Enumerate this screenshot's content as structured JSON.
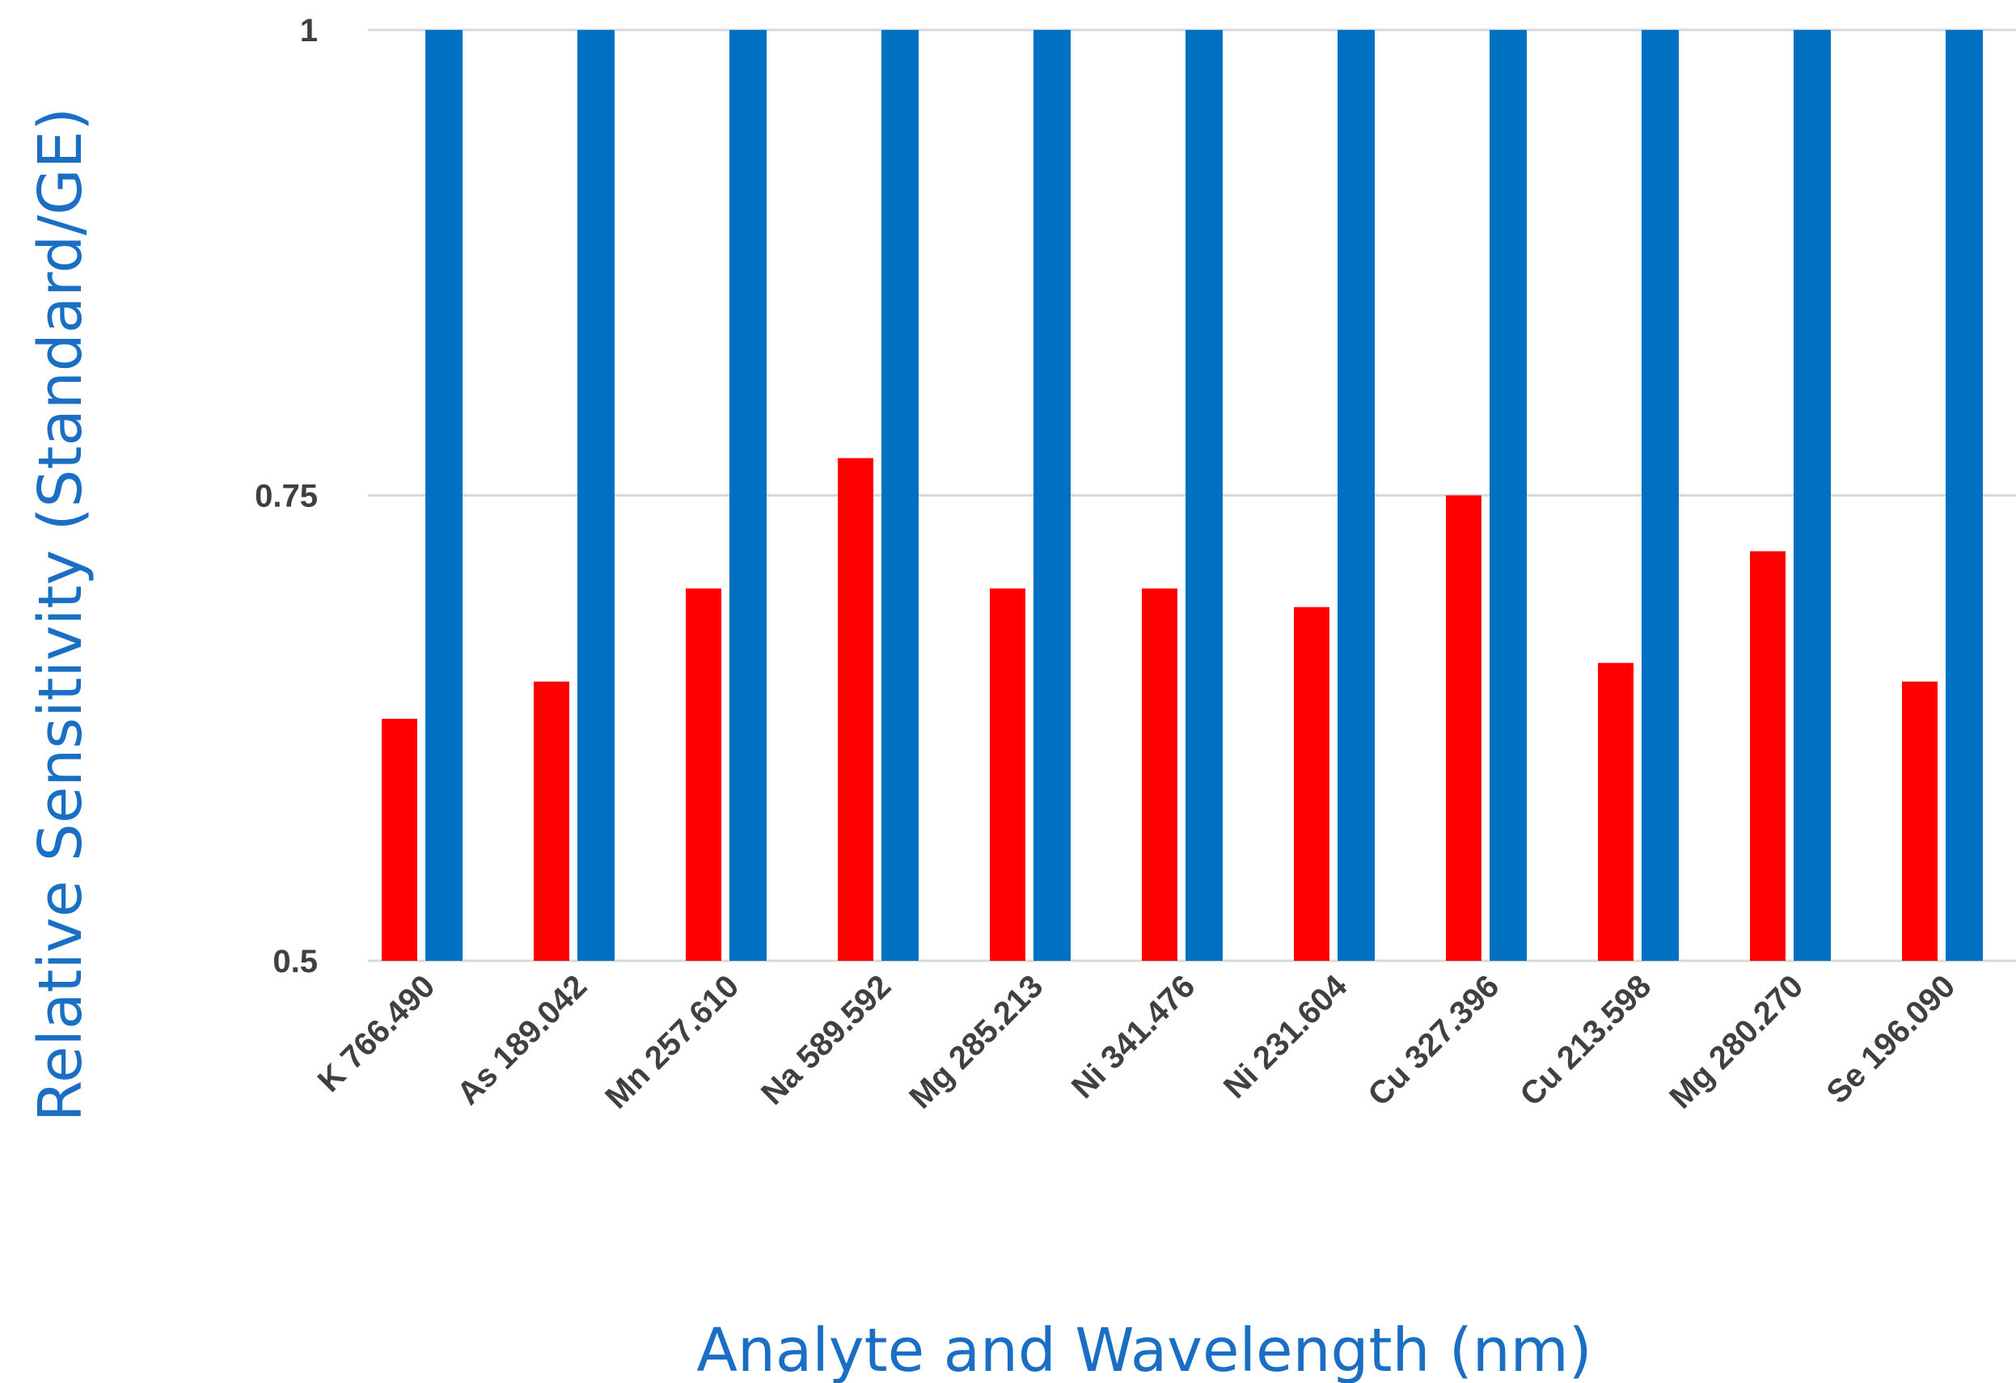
{
  "chart_data": {
    "type": "bar",
    "title": "",
    "xlabel": "Analyte and Wavelength (nm)",
    "ylabel": "Relative Sensitivity (Standard/GE)",
    "ylim": [
      0.5,
      1
    ],
    "yticks": [
      "0.5",
      "0.75",
      "1"
    ],
    "grid": true,
    "legend": "none",
    "categories": [
      "K 766.490",
      "As 189.042",
      "Mn 257.610",
      "Na 589.592",
      "Mg 285.213",
      "Ni 341.476",
      "Ni 231.604",
      "Cu 327.396",
      "Cu 213.598",
      "Mg 280.270",
      "Se 196.090"
    ],
    "series": [
      {
        "color": "#ff0000",
        "values": [
          0.63,
          0.65,
          0.7,
          0.77,
          0.7,
          0.7,
          0.69,
          0.75,
          0.66,
          0.72,
          0.65
        ]
      },
      {
        "color": "#0070c0",
        "values": [
          1,
          1,
          1,
          1,
          1,
          1,
          1,
          1,
          1,
          1,
          1
        ]
      }
    ]
  }
}
